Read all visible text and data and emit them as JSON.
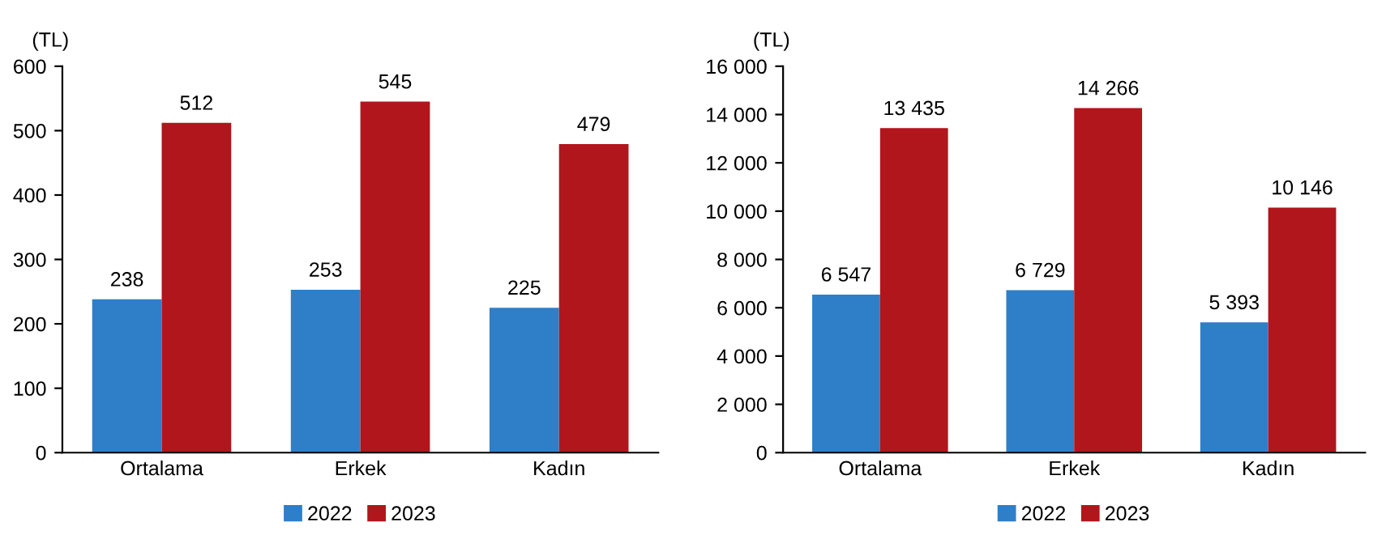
{
  "chart_data": [
    {
      "type": "bar",
      "ylabel": "(TL)",
      "categories": [
        "Ortalama",
        "Erkek",
        "Kadın"
      ],
      "series": [
        {
          "name": "2022",
          "color": "#2e7fc8",
          "values": [
            238,
            253,
            225
          ]
        },
        {
          "name": "2023",
          "color": "#b0161c",
          "values": [
            512,
            545,
            479
          ]
        }
      ],
      "ylim": [
        0,
        600
      ],
      "yticks": [
        0,
        100,
        200,
        300,
        400,
        500,
        600
      ],
      "data_labels": true,
      "legend": "bottom"
    },
    {
      "type": "bar",
      "ylabel": "(TL)",
      "categories": [
        "Ortalama",
        "Erkek",
        "Kadın"
      ],
      "series": [
        {
          "name": "2022",
          "color": "#2e7fc8",
          "values": [
            6547,
            6729,
            5393
          ],
          "value_labels": [
            "6 547",
            "6 729",
            "5 393"
          ]
        },
        {
          "name": "2023",
          "color": "#b0161c",
          "values": [
            13435,
            14266,
            10146
          ],
          "value_labels": [
            "13 435",
            "14 266",
            "10 146"
          ]
        }
      ],
      "ylim": [
        0,
        16000
      ],
      "yticks": [
        0,
        {
          "value": 2000,
          "label": "2 000"
        },
        {
          "value": 4000,
          "label": "4 000"
        },
        {
          "value": 6000,
          "label": "6 000"
        },
        {
          "value": 8000,
          "label": "8 000"
        },
        {
          "value": 10000,
          "label": "10 000"
        },
        {
          "value": 12000,
          "label": "12 000"
        },
        {
          "value": 14000,
          "label": "14 000"
        },
        {
          "value": 16000,
          "label": "16 000"
        }
      ],
      "legend": "bottom"
    }
  ]
}
